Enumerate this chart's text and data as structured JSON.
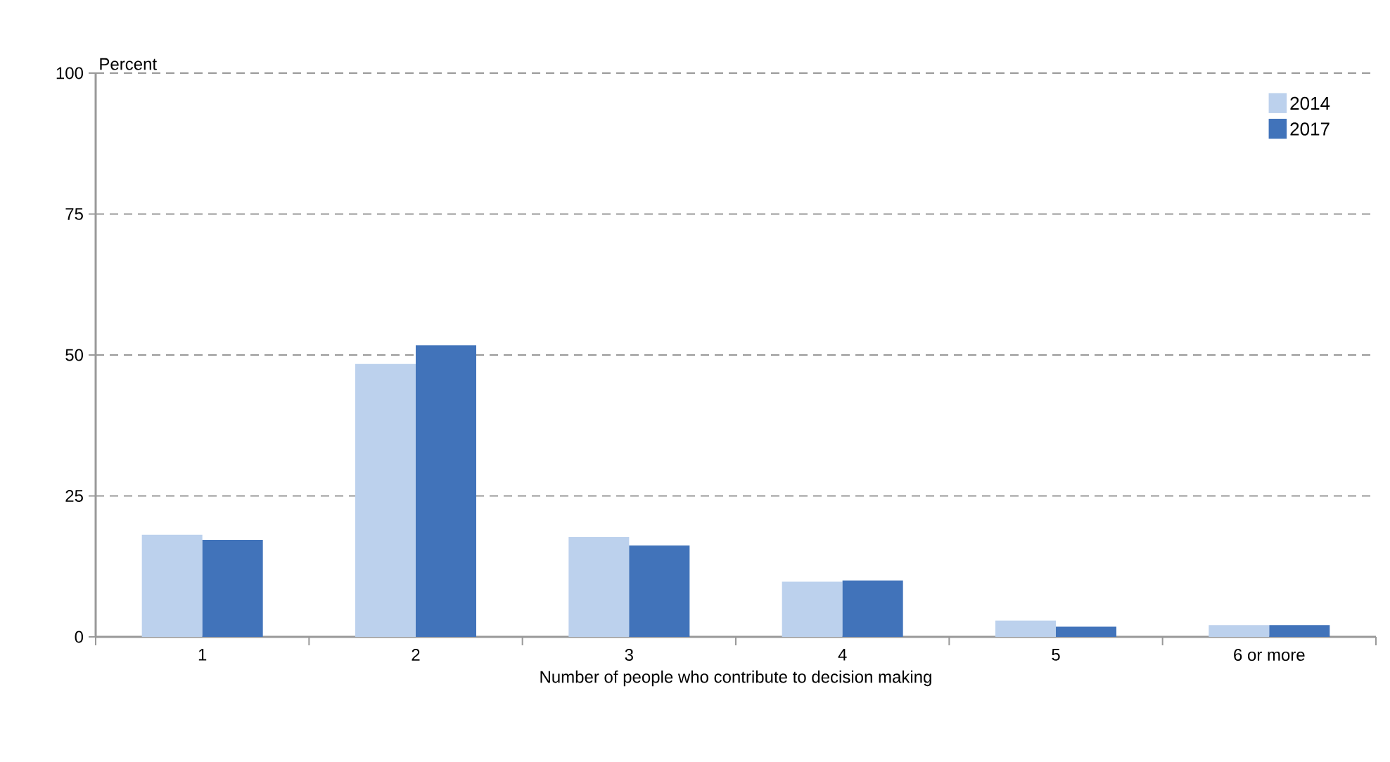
{
  "chart_data": {
    "type": "bar",
    "xlabel": "Number of people who contribute to decision making",
    "ylabel": "Percent",
    "categories": [
      "1",
      "2",
      "3",
      "4",
      "5",
      "6 or more"
    ],
    "series": [
      {
        "name": "2014",
        "color": "#bcd1ed",
        "values": [
          18.1,
          48.4,
          17.7,
          9.8,
          2.9,
          2.1
        ]
      },
      {
        "name": "2017",
        "color": "#4173ba",
        "values": [
          17.2,
          51.7,
          16.2,
          10.0,
          1.8,
          2.1
        ]
      }
    ],
    "ylim": [
      0,
      100
    ],
    "yticks": [
      0,
      25,
      50,
      75,
      100
    ],
    "grid": "y",
    "legend": "top right"
  }
}
